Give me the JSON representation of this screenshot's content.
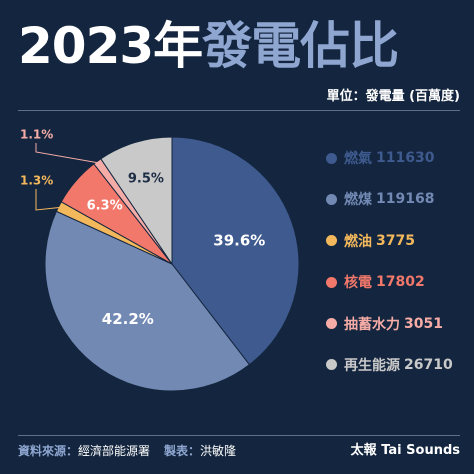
{
  "header": {
    "title_year": "2023年",
    "title_subject": "發電佔比",
    "unit": "單位：發電量 (百萬度)"
  },
  "chart_data": {
    "type": "pie",
    "title": "2023年發電佔比",
    "unit": "單位：發電量 (百萬度)",
    "slices": [
      {
        "name": "燃氣",
        "value": 111630,
        "percent_label": "39.6%",
        "color": "#3e5a8e"
      },
      {
        "name": "燃煤",
        "value": 119168,
        "percent_label": "42.2%",
        "color": "#7289b3"
      },
      {
        "name": "燃油",
        "value": 3775,
        "percent_label": "1.3%",
        "color": "#f3b85c"
      },
      {
        "name": "核電",
        "value": 17802,
        "percent_label": "6.3%",
        "color": "#f1786a"
      },
      {
        "name": "抽蓄水力",
        "value": 3051,
        "percent_label": "1.1%",
        "color": "#f6aca6"
      },
      {
        "name": "再生能源",
        "value": 26710,
        "percent_label": "9.5%",
        "color": "#c9c9c9"
      }
    ]
  },
  "footer": {
    "source_label": "資料來源：",
    "source_value": "經濟部能源署",
    "maker_label": "製表：",
    "maker_value": "洪敏隆",
    "brand": "太報 Tai Sounds"
  }
}
